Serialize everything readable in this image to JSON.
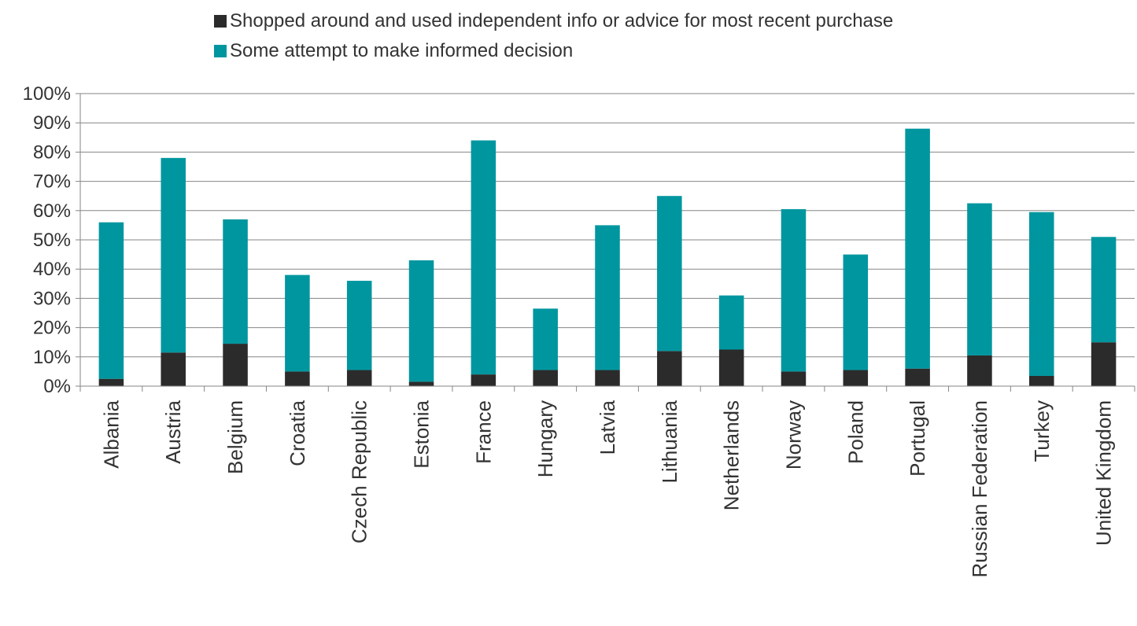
{
  "chart_data": {
    "type": "bar",
    "stacked": true,
    "title": "",
    "xlabel": "",
    "ylabel": "",
    "ylim": [
      0,
      100
    ],
    "yticks": [
      "0%",
      "10%",
      "20%",
      "30%",
      "40%",
      "50%",
      "60%",
      "70%",
      "80%",
      "90%",
      "100%"
    ],
    "grid": true,
    "legend_position": "top",
    "categories": [
      "Albania",
      "Austria",
      "Belgium",
      "Croatia",
      "Czech Republic",
      "Estonia",
      "France",
      "Hungary",
      "Latvia",
      "Lithuania",
      "Netherlands",
      "Norway",
      "Poland",
      "Portugal",
      "Russian Federation",
      "Turkey",
      "United Kingdom"
    ],
    "series": [
      {
        "name": "Shopped around and used independent info or advice for most recent purchase",
        "color": "#2b2b2b",
        "values": [
          2.5,
          11.5,
          14.5,
          5,
          5.5,
          1.5,
          4,
          5.5,
          5.5,
          12,
          12.5,
          5,
          5.5,
          6,
          10.5,
          3.5,
          15
        ]
      },
      {
        "name": "Some attempt to make informed decision",
        "color": "#00969f",
        "values": [
          53.5,
          66.5,
          42.5,
          33,
          30.5,
          41.5,
          80,
          21,
          49.5,
          53,
          18.5,
          55.5,
          39.5,
          82,
          52,
          56,
          36
        ]
      }
    ]
  }
}
